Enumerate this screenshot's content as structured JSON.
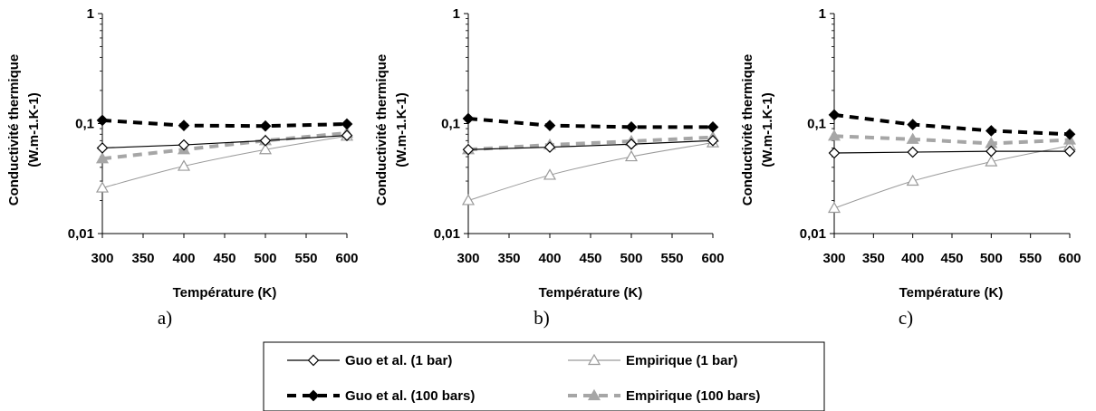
{
  "chart_data": [
    {
      "type": "line",
      "panel_label": "a)",
      "xlabel": "Température (K)",
      "ylabel_line1": "Conductivité thermique",
      "ylabel_line2": "(W.m-1.K-1)",
      "y_scale": "log",
      "xlim": [
        300,
        600
      ],
      "ylim": [
        0.01,
        1
      ],
      "x_ticks": [
        "300",
        "350",
        "400",
        "450",
        "500",
        "550",
        "600"
      ],
      "y_ticks": [
        "0,01",
        "0,1",
        "1"
      ],
      "x": [
        300,
        400,
        500,
        600
      ],
      "series": [
        {
          "name": "Guo et al. (1 bar)",
          "values": [
            0.06,
            0.064,
            0.07,
            0.078
          ]
        },
        {
          "name": "Empirique (1 bar)",
          "values": [
            0.026,
            0.041,
            0.058,
            0.077
          ]
        },
        {
          "name": "Guo et al. (100 bars)",
          "values": [
            0.107,
            0.096,
            0.095,
            0.099
          ]
        },
        {
          "name": "Empirique (100 bars)",
          "values": [
            0.048,
            0.058,
            0.07,
            0.082
          ]
        }
      ]
    },
    {
      "type": "line",
      "panel_label": "b)",
      "xlabel": "Température (K)",
      "ylabel_line1": "Conductivité thermique",
      "ylabel_line2": "(W.m-1.K-1)",
      "y_scale": "log",
      "xlim": [
        300,
        600
      ],
      "ylim": [
        0.01,
        1
      ],
      "x_ticks": [
        "300",
        "350",
        "400",
        "450",
        "500",
        "550",
        "600"
      ],
      "y_ticks": [
        "0,01",
        "0,1",
        "1"
      ],
      "x": [
        300,
        400,
        500,
        600
      ],
      "series": [
        {
          "name": "Guo et al. (1 bar)",
          "values": [
            0.058,
            0.061,
            0.065,
            0.07
          ]
        },
        {
          "name": "Empirique (1 bar)",
          "values": [
            0.02,
            0.034,
            0.05,
            0.067
          ]
        },
        {
          "name": "Guo et al. (100 bars)",
          "values": [
            0.111,
            0.096,
            0.093,
            0.093
          ]
        },
        {
          "name": "Empirique (100 bars)",
          "values": [
            0.058,
            0.064,
            0.069,
            0.075
          ]
        }
      ]
    },
    {
      "type": "line",
      "panel_label": "c)",
      "xlabel": "Température (K)",
      "ylabel_line1": "Conductivité thermique",
      "ylabel_line2": "(W.m-1.K-1)",
      "y_scale": "log",
      "xlim": [
        300,
        600
      ],
      "ylim": [
        0.01,
        1
      ],
      "x_ticks": [
        "300",
        "350",
        "400",
        "450",
        "500",
        "550",
        "600"
      ],
      "y_ticks": [
        "0,01",
        "0,1",
        "1"
      ],
      "x": [
        300,
        400,
        500,
        600
      ],
      "series": [
        {
          "name": "Guo et al. (1 bar)",
          "values": [
            0.054,
            0.055,
            0.056,
            0.056
          ]
        },
        {
          "name": "Empirique (1 bar)",
          "values": [
            0.017,
            0.03,
            0.045,
            0.063
          ]
        },
        {
          "name": "Guo et al. (100 bars)",
          "values": [
            0.12,
            0.098,
            0.086,
            0.08
          ]
        },
        {
          "name": "Empirique (100 bars)",
          "values": [
            0.077,
            0.072,
            0.066,
            0.071
          ]
        }
      ]
    }
  ],
  "legend": {
    "items": [
      {
        "label": "Guo et al. (1 bar)",
        "style": "guo1"
      },
      {
        "label": "Empirique (1 bar)",
        "style": "emp1"
      },
      {
        "label": "Guo et al. (100 bars)",
        "style": "guo100"
      },
      {
        "label": "Empirique (100 bars)",
        "style": "emp100"
      }
    ]
  },
  "styles": {
    "guo1": {
      "color": "#000000",
      "dashed": false,
      "marker": "diamond-open"
    },
    "emp1": {
      "color": "#9a9a9a",
      "dashed": false,
      "marker": "triangle-open"
    },
    "guo100": {
      "color": "#000000",
      "dashed": true,
      "marker": "diamond-filled"
    },
    "emp100": {
      "color": "#a6a6a6",
      "dashed": true,
      "marker": "triangle-filled"
    }
  }
}
